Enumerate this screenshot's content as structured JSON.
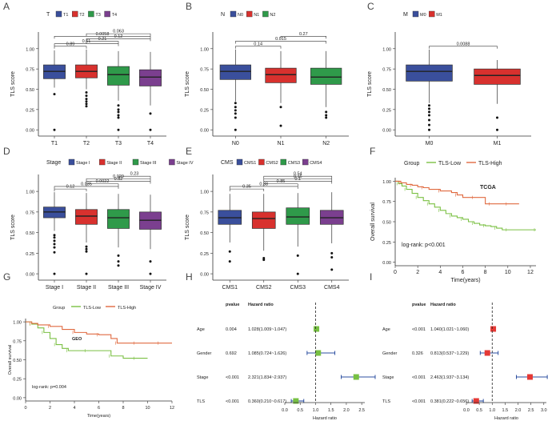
{
  "colors": {
    "T1": "#3a4f9c",
    "T2": "#d8312e",
    "T3": "#2f9a4a",
    "T4": "#7b3f8f",
    "tls_low": "#7bc043",
    "tls_high": "#e06a40",
    "forest_green": "#77c043",
    "forest_red": "#e53935",
    "forest_blue": "#2c4fa0"
  },
  "chart_data": [
    {
      "panel": "A",
      "type": "box",
      "legend_title": "T",
      "groups": [
        "T1",
        "T2",
        "T3",
        "T4"
      ],
      "ylabel": "TLS score",
      "ylim": [
        0,
        1.0
      ],
      "yticks": [
        "0.00",
        "0.25",
        "0.50",
        "0.75",
        "1.00"
      ],
      "boxes": [
        {
          "group": "T1",
          "q1": 0.63,
          "median": 0.72,
          "q3": 0.8,
          "lo": 0.52,
          "hi": 0.98,
          "outliers": [
            0.44,
            0.0
          ]
        },
        {
          "group": "T2",
          "q1": 0.64,
          "median": 0.72,
          "q3": 0.8,
          "lo": 0.5,
          "hi": 0.99,
          "outliers": [
            0.46,
            0.42,
            0.38,
            0.35,
            0.32,
            0.29
          ]
        },
        {
          "group": "T3",
          "q1": 0.55,
          "median": 0.68,
          "q3": 0.78,
          "lo": 0.36,
          "hi": 0.97,
          "outliers": [
            0.3,
            0.25,
            0.22,
            0.18,
            0.15,
            0.0
          ]
        },
        {
          "group": "T4",
          "q1": 0.54,
          "median": 0.65,
          "q3": 0.74,
          "lo": 0.3,
          "hi": 0.96,
          "outliers": [
            0.2,
            0.0
          ]
        }
      ],
      "comparisons": [
        {
          "from": "T1",
          "to": "T2",
          "p": "0.89"
        },
        {
          "from": "T1",
          "to": "T3",
          "p": "0.61"
        },
        {
          "from": "T2",
          "to": "T3",
          "p": "0.21"
        },
        {
          "from": "T2",
          "to": "T4",
          "p": "0.12"
        },
        {
          "from": "T1",
          "to": "T4",
          "p": "0.0058"
        },
        {
          "from": "T2",
          "to": "T4",
          "p": "0.063"
        }
      ]
    },
    {
      "panel": "B",
      "type": "box",
      "legend_title": "N",
      "groups": [
        "N0",
        "N1",
        "N2"
      ],
      "ylabel": "TLS score",
      "ylim": [
        0,
        1.0
      ],
      "yticks": [
        "0.00",
        "0.25",
        "0.50",
        "0.75",
        "1.00"
      ],
      "boxes": [
        {
          "group": "N0",
          "q1": 0.62,
          "median": 0.72,
          "q3": 0.8,
          "lo": 0.35,
          "hi": 0.99,
          "outliers": [
            0.33,
            0.28,
            0.24,
            0.2,
            0.15,
            0.0
          ]
        },
        {
          "group": "N1",
          "q1": 0.58,
          "median": 0.68,
          "q3": 0.76,
          "lo": 0.33,
          "hi": 0.97,
          "outliers": [
            0.28,
            0.05
          ]
        },
        {
          "group": "N2",
          "q1": 0.56,
          "median": 0.65,
          "q3": 0.76,
          "lo": 0.28,
          "hi": 0.97,
          "outliers": [
            0.22,
            0.18,
            0.15
          ]
        }
      ],
      "comparisons": [
        {
          "from": "N0",
          "to": "N1",
          "p": "0.14"
        },
        {
          "from": "N0",
          "to": "N2",
          "p": "0.015"
        },
        {
          "from": "N1",
          "to": "N2",
          "p": "0.27"
        }
      ]
    },
    {
      "panel": "C",
      "type": "box",
      "legend_title": "M",
      "groups": [
        "M0",
        "M1"
      ],
      "ylabel": "TLS score",
      "ylim": [
        0,
        1.0
      ],
      "yticks": [
        "0.00",
        "0.25",
        "0.50",
        "0.75",
        "1.00"
      ],
      "boxes": [
        {
          "group": "M0",
          "q1": 0.6,
          "median": 0.72,
          "q3": 0.8,
          "lo": 0.33,
          "hi": 0.99,
          "outliers": [
            0.3,
            0.26,
            0.22,
            0.18,
            0.12,
            0.06,
            0.0
          ]
        },
        {
          "group": "M1",
          "q1": 0.56,
          "median": 0.67,
          "q3": 0.75,
          "lo": 0.32,
          "hi": 0.86,
          "outliers": [
            0.15,
            0.0
          ]
        }
      ],
      "comparisons": [
        {
          "from": "M0",
          "to": "M1",
          "p": "0.0088"
        }
      ]
    },
    {
      "panel": "D",
      "type": "box",
      "legend_title": "Stage",
      "groups": [
        "Stage I",
        "Stage II",
        "Stage III",
        "Stage IV"
      ],
      "ylabel": "TLS score",
      "ylim": [
        0,
        1.0
      ],
      "yticks": [
        "0.00",
        "0.25",
        "0.50",
        "0.75",
        "1.00"
      ],
      "boxes": [
        {
          "group": "Stage I",
          "q1": 0.68,
          "median": 0.75,
          "q3": 0.81,
          "lo": 0.52,
          "hi": 0.99,
          "outliers": [
            0.47,
            0.44,
            0.4,
            0.36,
            0.32,
            0.26,
            0.0
          ]
        },
        {
          "group": "Stage II",
          "q1": 0.6,
          "median": 0.7,
          "q3": 0.78,
          "lo": 0.38,
          "hi": 0.98,
          "outliers": [
            0.33,
            0.3,
            0.27,
            0.0
          ]
        },
        {
          "group": "Stage III",
          "q1": 0.55,
          "median": 0.68,
          "q3": 0.78,
          "lo": 0.32,
          "hi": 0.97,
          "outliers": [
            0.22,
            0.15,
            0.1
          ]
        },
        {
          "group": "Stage IV",
          "q1": 0.54,
          "median": 0.65,
          "q3": 0.75,
          "lo": 0.3,
          "hi": 0.96,
          "outliers": [
            0.15,
            0.0
          ]
        }
      ],
      "comparisons": [
        {
          "from": "Stage I",
          "to": "Stage II",
          "p": "0.12"
        },
        {
          "from": "Stage I",
          "to": "Stage III",
          "p": "0.035"
        },
        {
          "from": "Stage II",
          "to": "Stage III",
          "p": "0.0022"
        },
        {
          "from": "Stage II",
          "to": "Stage IV",
          "p": "0.32"
        },
        {
          "from": "Stage II",
          "to": "Stage IV",
          "p": "0.029"
        },
        {
          "from": "Stage III",
          "to": "Stage IV",
          "p": "0.23"
        }
      ]
    },
    {
      "panel": "E",
      "type": "box",
      "legend_title": "CMS",
      "groups": [
        "CMS1",
        "CMS2",
        "CMS3",
        "CMS4"
      ],
      "ylabel": "TLS score",
      "ylim": [
        0,
        1.0
      ],
      "yticks": [
        "0.00",
        "0.25",
        "0.50",
        "0.75",
        "1.00"
      ],
      "boxes": [
        {
          "group": "CMS1",
          "q1": 0.6,
          "median": 0.68,
          "q3": 0.77,
          "lo": 0.38,
          "hi": 0.97,
          "outliers": [
            0.27,
            0.15
          ]
        },
        {
          "group": "CMS2",
          "q1": 0.55,
          "median": 0.67,
          "q3": 0.75,
          "lo": 0.28,
          "hi": 0.97,
          "outliers": [
            0.19,
            0.17
          ]
        },
        {
          "group": "CMS3",
          "q1": 0.6,
          "median": 0.69,
          "q3": 0.8,
          "lo": 0.33,
          "hi": 0.98,
          "outliers": [
            0.22,
            0.0
          ]
        },
        {
          "group": "CMS4",
          "q1": 0.6,
          "median": 0.68,
          "q3": 0.77,
          "lo": 0.37,
          "hi": 0.99,
          "outliers": [
            0.25,
            0.2,
            0.05
          ]
        }
      ],
      "comparisons": [
        {
          "from": "CMS1",
          "to": "CMS2",
          "p": "0.35"
        },
        {
          "from": "CMS1",
          "to": "CMS3",
          "p": "0.38"
        },
        {
          "from": "CMS2",
          "to": "CMS3",
          "p": "0.85"
        },
        {
          "from": "CMS2",
          "to": "CMS4",
          "p": "0.1"
        },
        {
          "from": "CMS2",
          "to": "CMS4",
          "p": "0.16"
        },
        {
          "from": "CMS2",
          "to": "CMS4",
          "p": "0.54"
        }
      ]
    },
    {
      "panel": "F",
      "type": "line",
      "title": "TCGA",
      "legend_title": "Group",
      "series_names": [
        "TLS-Low",
        "TLS-High"
      ],
      "xlabel": "Time(years)",
      "ylabel": "Overall survival",
      "xlim": [
        0,
        12.5
      ],
      "ylim": [
        0,
        1.0
      ],
      "xticks": [
        "0",
        "2",
        "4",
        "6",
        "8",
        "10",
        "12"
      ],
      "yticks": [
        "0.00",
        "0.25",
        "0.50",
        "0.75",
        "1.00"
      ],
      "annotation": "log-rank: p<0.001",
      "series": [
        {
          "name": "TLS-Low",
          "x": [
            0,
            0.3,
            0.6,
            1.0,
            1.5,
            2.0,
            2.5,
            3.0,
            3.5,
            4.0,
            4.5,
            5.0,
            5.5,
            6.0,
            6.5,
            7.0,
            7.5,
            8.0,
            8.5,
            9.0,
            9.5,
            10.0,
            11.0,
            12.5
          ],
          "y": [
            1.0,
            0.97,
            0.94,
            0.9,
            0.85,
            0.8,
            0.76,
            0.72,
            0.68,
            0.64,
            0.6,
            0.57,
            0.55,
            0.53,
            0.5,
            0.48,
            0.46,
            0.45,
            0.44,
            0.42,
            0.4,
            0.4,
            0.4,
            0.4
          ]
        },
        {
          "name": "TLS-High",
          "x": [
            0,
            0.5,
            1.0,
            1.5,
            2.0,
            2.5,
            3.0,
            4.0,
            5.0,
            5.5,
            6.0,
            7.0,
            8.0,
            8.5,
            9.0,
            10.0,
            11.0
          ],
          "y": [
            1.0,
            0.98,
            0.96,
            0.95,
            0.93,
            0.92,
            0.9,
            0.88,
            0.86,
            0.83,
            0.8,
            0.8,
            0.72,
            0.72,
            0.72,
            0.72,
            0.72
          ]
        }
      ]
    },
    {
      "panel": "G",
      "type": "line",
      "title": "GEO",
      "legend_title": "Group",
      "series_names": [
        "TLS-Low",
        "TLS-High"
      ],
      "xlabel": "Time(years)",
      "ylabel": "Overall survival",
      "xlim": [
        0,
        12
      ],
      "ylim": [
        0,
        1.0
      ],
      "xticks": [
        "0",
        "2",
        "4",
        "6",
        "8",
        "10",
        "12"
      ],
      "yticks": [
        "0.00",
        "0.25",
        "0.50",
        "0.75",
        "1.00"
      ],
      "annotation": "log-rank: p=0.004",
      "series": [
        {
          "name": "TLS-Low",
          "x": [
            0,
            0.5,
            1.0,
            1.5,
            2.0,
            2.5,
            3.0,
            3.5,
            4.0,
            5.0,
            6.0,
            7.0,
            8.0,
            9.0,
            10.0
          ],
          "y": [
            1.0,
            0.97,
            0.92,
            0.86,
            0.78,
            0.7,
            0.65,
            0.62,
            0.62,
            0.62,
            0.62,
            0.55,
            0.52,
            0.52,
            0.52
          ]
        },
        {
          "name": "TLS-High",
          "x": [
            0,
            0.5,
            1.0,
            2.0,
            3.0,
            4.0,
            5.0,
            6.0,
            7.0,
            7.5,
            8.0,
            9.0,
            10.0,
            11.0,
            12.0
          ],
          "y": [
            1.0,
            0.98,
            0.96,
            0.94,
            0.9,
            0.86,
            0.84,
            0.83,
            0.78,
            0.72,
            0.72,
            0.72,
            0.72,
            0.72,
            0.72
          ]
        }
      ]
    },
    {
      "panel": "H",
      "type": "forest",
      "header_pvalue": "pvalue",
      "header_hr": "Hazard ratio",
      "xlabel": "Hazard ratio",
      "xlim": [
        0,
        2.6
      ],
      "ref_line": 1.0,
      "xticks": [
        "0.0",
        "0.5",
        "1.0",
        "1.5",
        "2.0",
        "2.5"
      ],
      "rows": [
        {
          "label": "Age",
          "pvalue": "0.004",
          "hr_text": "1.028(1.009~1.047)",
          "hr": 1.028,
          "lo": 1.009,
          "hi": 1.047,
          "color": "green"
        },
        {
          "label": "Gender",
          "pvalue": "0.692",
          "hr_text": "1.085(0.724~1.626)",
          "hr": 1.085,
          "lo": 0.724,
          "hi": 1.626,
          "color": "green"
        },
        {
          "label": "Stage",
          "pvalue": "<0.001",
          "hr_text": "2.321(1.834~2.937)",
          "hr": 2.321,
          "lo": 1.834,
          "hi": 2.937,
          "color": "green"
        },
        {
          "label": "TLS",
          "pvalue": "<0.001",
          "hr_text": "0.360(0.210~0.617)",
          "hr": 0.36,
          "lo": 0.21,
          "hi": 0.617,
          "color": "green"
        }
      ]
    },
    {
      "panel": "I",
      "type": "forest",
      "header_pvalue": "pvalue",
      "header_hr": "Hazard ratio",
      "xlabel": "Hazard ratio",
      "xlim": [
        0,
        3.1
      ],
      "ref_line": 1.0,
      "xticks": [
        "0.0",
        "0.5",
        "1.0",
        "1.5",
        "2.0",
        "2.5",
        "3.0"
      ],
      "rows": [
        {
          "label": "Age",
          "pvalue": "<0.001",
          "hr_text": "1.040(1.021~1.060)",
          "hr": 1.04,
          "lo": 1.021,
          "hi": 1.06,
          "color": "red"
        },
        {
          "label": "Gender",
          "pvalue": "0.326",
          "hr_text": "0.813(0.537~1.229)",
          "hr": 0.813,
          "lo": 0.537,
          "hi": 1.229,
          "color": "red"
        },
        {
          "label": "Stage",
          "pvalue": "<0.001",
          "hr_text": "2.463(1.937~3.134)",
          "hr": 2.463,
          "lo": 1.937,
          "hi": 3.134,
          "color": "red"
        },
        {
          "label": "TLS",
          "pvalue": "<0.001",
          "hr_text": "0.381(0.222~0.656)",
          "hr": 0.381,
          "lo": 0.222,
          "hi": 0.656,
          "color": "red"
        }
      ]
    }
  ]
}
